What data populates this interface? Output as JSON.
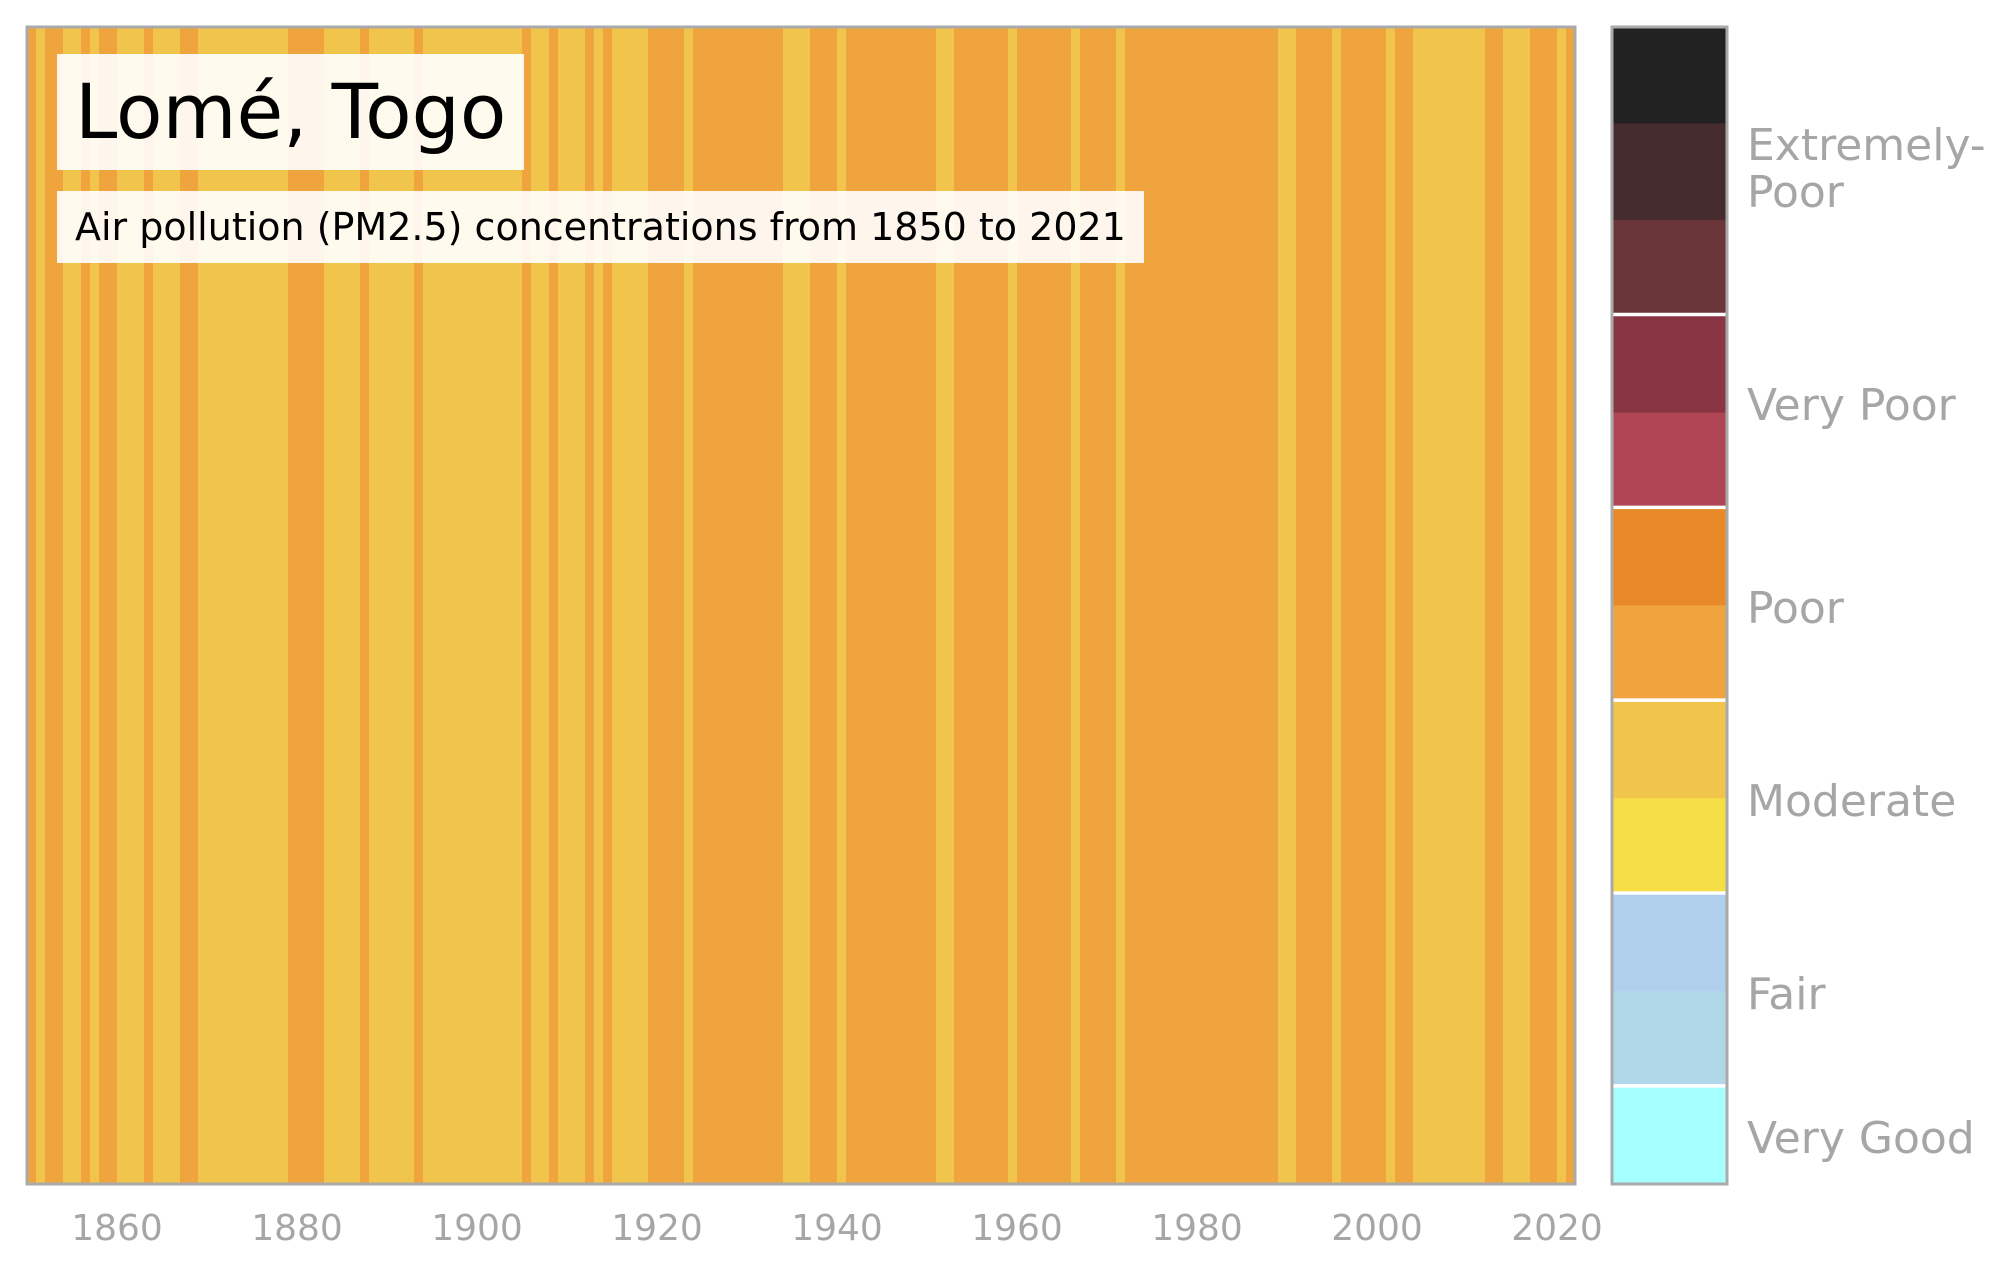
{
  "chart_data": {
    "type": "heatmap",
    "title": "Lomé, Togo",
    "subtitle": "Air pollution (PM2.5) concentrations from 1850 to 2021",
    "xlim": [
      1850,
      2022
    ],
    "xticks": [
      "1860",
      "1880",
      "1900",
      "1920",
      "1940",
      "1960",
      "1980",
      "2000",
      "2020"
    ],
    "colors": {
      "Moderate": "#f1c54b",
      "Poor": "#f0a43e"
    },
    "years_start": 1850,
    "years_end": 2021,
    "categories_by_year": [
      "Poor",
      "Moderate",
      "Poor",
      "Poor",
      "Moderate",
      "Moderate",
      "Poor",
      "Moderate",
      "Poor",
      "Poor",
      "Moderate",
      "Moderate",
      "Moderate",
      "Poor",
      "Moderate",
      "Moderate",
      "Moderate",
      "Poor",
      "Poor",
      "Moderate",
      "Moderate",
      "Moderate",
      "Moderate",
      "Moderate",
      "Moderate",
      "Moderate",
      "Moderate",
      "Moderate",
      "Moderate",
      "Poor",
      "Poor",
      "Poor",
      "Poor",
      "Moderate",
      "Moderate",
      "Moderate",
      "Moderate",
      "Poor",
      "Moderate",
      "Moderate",
      "Moderate",
      "Moderate",
      "Moderate",
      "Poor",
      "Moderate",
      "Moderate",
      "Moderate",
      "Moderate",
      "Moderate",
      "Moderate",
      "Moderate",
      "Moderate",
      "Moderate",
      "Moderate",
      "Moderate",
      "Poor",
      "Moderate",
      "Moderate",
      "Poor",
      "Moderate",
      "Moderate",
      "Moderate",
      "Poor",
      "Moderate",
      "Poor",
      "Moderate",
      "Moderate",
      "Moderate",
      "Moderate",
      "Poor",
      "Poor",
      "Poor",
      "Poor",
      "Moderate",
      "Poor",
      "Poor",
      "Poor",
      "Poor",
      "Poor",
      "Poor",
      "Poor",
      "Poor",
      "Poor",
      "Poor",
      "Moderate",
      "Moderate",
      "Moderate",
      "Poor",
      "Poor",
      "Poor",
      "Moderate",
      "Poor",
      "Poor",
      "Poor",
      "Poor",
      "Poor",
      "Poor",
      "Poor",
      "Poor",
      "Poor",
      "Poor",
      "Moderate",
      "Moderate",
      "Poor",
      "Poor",
      "Poor",
      "Poor",
      "Poor",
      "Poor",
      "Moderate",
      "Poor",
      "Poor",
      "Poor",
      "Poor",
      "Poor",
      "Poor",
      "Moderate",
      "Poor",
      "Poor",
      "Poor",
      "Poor",
      "Moderate",
      "Poor",
      "Poor",
      "Poor",
      "Poor",
      "Poor",
      "Poor",
      "Poor",
      "Poor",
      "Poor",
      "Poor",
      "Poor",
      "Poor",
      "Poor",
      "Poor",
      "Poor",
      "Poor",
      "Poor",
      "Moderate",
      "Moderate",
      "Poor",
      "Poor",
      "Poor",
      "Poor",
      "Moderate",
      "Poor",
      "Poor",
      "Poor",
      "Poor",
      "Poor",
      "Moderate",
      "Poor",
      "Poor",
      "Moderate",
      "Moderate",
      "Moderate",
      "Moderate",
      "Moderate",
      "Moderate",
      "Moderate",
      "Moderate",
      "Poor",
      "Poor",
      "Moderate",
      "Moderate",
      "Moderate",
      "Poor",
      "Poor",
      "Poor",
      "Moderate",
      "Poor"
    ]
  },
  "legend": {
    "scale": [
      {
        "band": "Extremely-Poor",
        "colors": [
          "#222222",
          "#452c2f",
          "#693539"
        ]
      },
      {
        "band": "Very Poor",
        "colors": [
          "#8a3544",
          "#b04553"
        ]
      },
      {
        "band": "Poor",
        "colors": [
          "#e88a27",
          "#f0a43e"
        ]
      },
      {
        "band": "Moderate",
        "colors": [
          "#f1c54b",
          "#f6de46"
        ]
      },
      {
        "band": "Fair",
        "colors": [
          "#b0cfec",
          "#b0d8e8"
        ]
      },
      {
        "band": "Very Good",
        "colors": [
          "#a6ffff"
        ]
      }
    ],
    "labels": {
      "extremely_poor_line1": "Extremely-",
      "extremely_poor_line2": "Poor",
      "very_poor": "Very Poor",
      "poor": "Poor",
      "moderate": "Moderate",
      "fair": "Fair",
      "very_good": "Very Good"
    }
  }
}
